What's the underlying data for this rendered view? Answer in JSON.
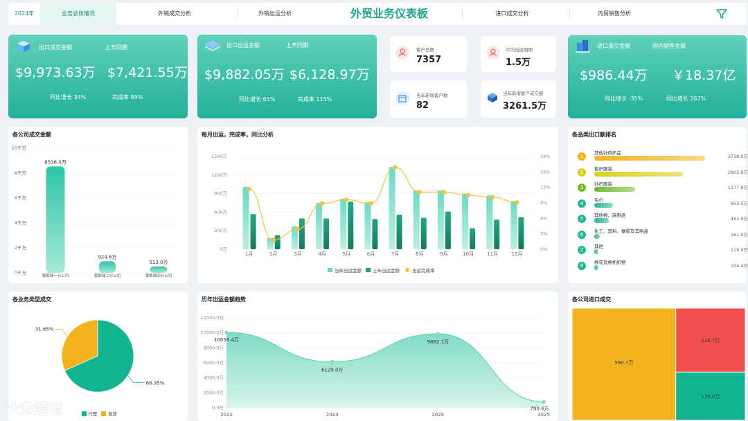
{
  "nav": {
    "year": "2024年",
    "tabs": [
      "业务总体情况",
      "外销成交分析",
      "外销出运分析"
    ],
    "title": "外贸业务仪表板",
    "tabs_right": [
      "进口成交分析",
      "内贸销售分析"
    ]
  },
  "kpi1": {
    "label": "出口成交金额",
    "label2": "上年同期",
    "value": "$9,973.63万",
    "value2": "$7,421.55万",
    "sub1": "同比增长 34%",
    "sub2": "完成率 89%"
  },
  "kpi2": {
    "label": "出口出运金额",
    "label2": "上年同期",
    "value": "$9,882.05万",
    "value2": "$6,128.97万",
    "sub1": "同比增长 61%",
    "sub2": "完成率 115%"
  },
  "mini": [
    {
      "label": "客户总数",
      "value": "7357",
      "icon": "user-icon"
    },
    {
      "label": "平均出运周期",
      "value": "1.5万",
      "icon": "user-icon"
    },
    {
      "label": "当年新增客户数",
      "value": "82",
      "icon": "calendar-icon"
    },
    {
      "label": "当年新增客户成交额",
      "value": "3261.5万",
      "icon": "box-icon"
    }
  ],
  "kpi3": {
    "label": "进口成交金额",
    "label2": "国内销售金额",
    "value": "$986.44万",
    "value2": "￥18.37亿",
    "sub1": "同比增长  -35%",
    "sub2": "同比增长 267%"
  },
  "company": {
    "title": "各公司成交金额",
    "yticks": [
      "10千万",
      "8千万",
      "6千万",
      "4千万",
      "2千万",
      "0千万"
    ],
    "chart_data": {
      "type": "bar",
      "categories": [
        "葡萄城一分公司",
        "葡萄城二分公司",
        "葡萄城四分公司"
      ],
      "values": [
        8536.0,
        924.6,
        513.0
      ],
      "labels": [
        "8536.0万",
        "924.6万",
        "513.0万"
      ],
      "ylim": [
        0,
        10000
      ]
    }
  },
  "monthly": {
    "title": "每月出运，完成率，同比分析",
    "yticks_left": [
      "1500万",
      "1200万",
      "900万",
      "600万",
      "300万",
      "0万"
    ],
    "yticks_right": [
      "18%",
      "15%",
      "12%",
      "9%",
      "6%",
      "3%",
      "0%"
    ],
    "legend": [
      "当年出运金额",
      "上年出运金额",
      "出运完成率"
    ],
    "chart_data": {
      "type": "bar",
      "categories": [
        "1月",
        "2月",
        "3月",
        "4月",
        "5月",
        "6月",
        "7月",
        "8月",
        "9月",
        "10月",
        "11月",
        "12月"
      ],
      "series": [
        {
          "name": "当年出运金额",
          "values": [
            1010,
            180,
            370,
            750,
            820,
            760,
            1330,
            950,
            950,
            900,
            870,
            780
          ]
        },
        {
          "name": "上年出运金额",
          "values": [
            570,
            230,
            500,
            500,
            770,
            490,
            560,
            510,
            610,
            340,
            480,
            520
          ]
        },
        {
          "name": "出运完成率",
          "values": [
            11.7,
            1.8,
            3.9,
            8.9,
            9.6,
            8.9,
            15.9,
            11.1,
            11.1,
            10.5,
            10.1,
            9.1
          ]
        }
      ],
      "ylim": [
        0,
        1500
      ],
      "ylim_right": [
        0,
        18
      ]
    }
  },
  "ranking": {
    "title": "各品类出口额排名",
    "items": [
      {
        "name": "其他针纺织品",
        "value": "3738.0万",
        "num": 1,
        "color": "#f3b41e",
        "ratio": 1.0
      },
      {
        "name": "梭织服装",
        "value": "2902.8万",
        "num": 2,
        "color": "#d8cf18",
        "ratio": 0.8
      },
      {
        "name": "针织服装",
        "value": "1277.8万",
        "num": 3,
        "color": "#6cbd2a",
        "ratio": 0.37
      },
      {
        "name": "毛巾",
        "value": "603.5万",
        "num": 4,
        "color": "#22b89a",
        "ratio": 0.17
      },
      {
        "name": "其他棉、麻制品",
        "value": "452.9万",
        "num": 5,
        "color": "#22b89a",
        "ratio": 0.13
      },
      {
        "name": "化工、塑料、橡胶及其制品",
        "value": "161.0万",
        "num": 6,
        "color": "#22b89a",
        "ratio": 0.05
      },
      {
        "name": "其他",
        "value": "119.9万",
        "num": 7,
        "color": "#22b89a",
        "ratio": 0.03
      },
      {
        "name": "棉花及棉机织物",
        "value": "104.4万",
        "num": 8,
        "color": "#22b89a",
        "ratio": 0.02
      }
    ]
  },
  "business": {
    "title": "各业务类型成交",
    "legend": [
      "代理",
      "自营"
    ],
    "chart_data": {
      "type": "pie",
      "labels": [
        "代理",
        "自营"
      ],
      "values": [
        68.35,
        31.65
      ],
      "text": [
        "68.35%",
        "31.65%"
      ],
      "colors": [
        "#12b491",
        "#f3b41e"
      ]
    }
  },
  "history": {
    "title": "历年出运金额趋势",
    "yticks": [
      "12000.0万",
      "10000.0万",
      "8000.0万",
      "6000.0万",
      "4000.0万",
      "2000.0万",
      "0.0万"
    ],
    "chart_data": {
      "type": "area",
      "categories": [
        "2022",
        "2023",
        "2024",
        "2025"
      ],
      "values": [
        10056.4,
        6129.0,
        9882.1,
        790.4
      ],
      "labels": [
        "10056.4万",
        "6129.0万",
        "9882.1万",
        "790.4万"
      ],
      "ylim": [
        0,
        12000
      ]
    }
  },
  "import": {
    "title": "各公司进口成交",
    "chart_data": {
      "type": "treemap",
      "values": [
        590.7,
        225.7,
        170.0
      ],
      "labels": [
        "590.7万",
        "225.7万",
        "170.0万"
      ],
      "colors": [
        "#f3b41e",
        "#f0514f",
        "#12b491"
      ]
    }
  },
  "watermark": "大数跨境"
}
